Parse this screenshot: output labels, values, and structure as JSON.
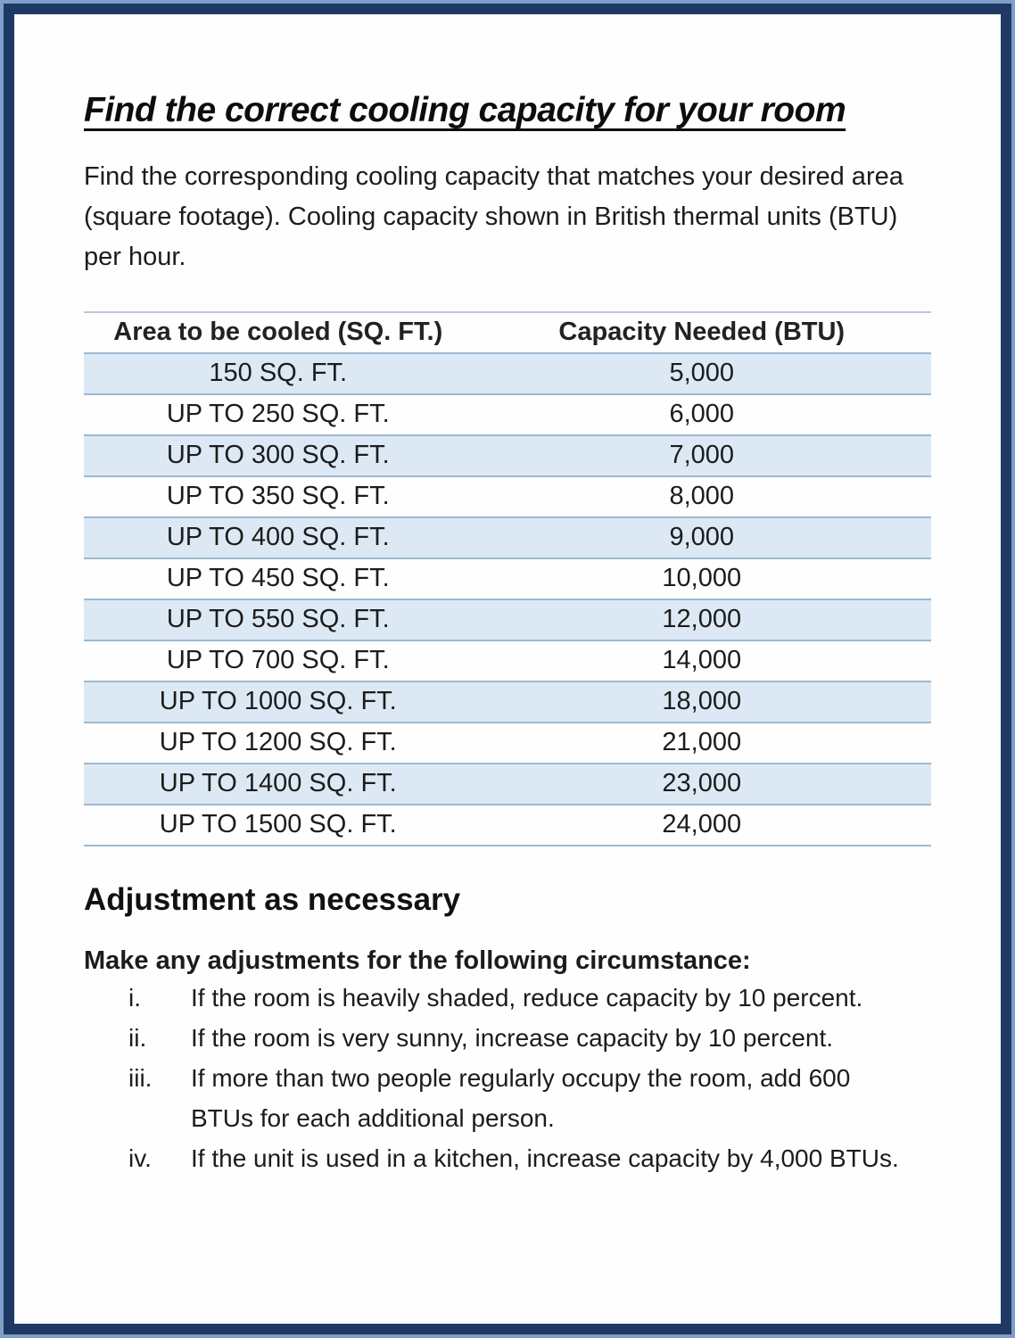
{
  "title": "Find the correct cooling capacity for your room",
  "intro": "Find the corresponding cooling capacity that matches your desired area (square footage). Cooling capacity shown in British thermal units (BTU) per hour.",
  "table": {
    "headers": [
      "Area to be cooled (SQ. FT.)",
      "Capacity Needed (BTU)"
    ],
    "rows": [
      [
        "150 SQ. FT.",
        "5,000"
      ],
      [
        "UP TO 250 SQ. FT.",
        "6,000"
      ],
      [
        "UP TO 300 SQ. FT.",
        "7,000"
      ],
      [
        "UP TO 350 SQ. FT.",
        "8,000"
      ],
      [
        "UP TO 400 SQ. FT.",
        "9,000"
      ],
      [
        "UP TO 450 SQ. FT.",
        "10,000"
      ],
      [
        "UP TO 550 SQ. FT.",
        "12,000"
      ],
      [
        "UP TO 700 SQ. FT.",
        "14,000"
      ],
      [
        "UP TO 1000 SQ. FT.",
        "18,000"
      ],
      [
        "UP TO 1200 SQ. FT.",
        "21,000"
      ],
      [
        "UP TO 1400 SQ. FT.",
        "23,000"
      ],
      [
        "UP TO 1500 SQ. FT.",
        "24,000"
      ]
    ]
  },
  "adjustments": {
    "heading": "Adjustment as necessary",
    "lead": "Make any adjustments for the following circumstance:",
    "items": [
      {
        "marker": "i.",
        "text": "If the room is heavily shaded, reduce capacity by 10 percent."
      },
      {
        "marker": "ii.",
        "text": "If the room is very sunny, increase capacity by 10 percent."
      },
      {
        "marker": "iii.",
        "text": "If more than two people regularly occupy the room, add 600 BTUs for each additional person."
      },
      {
        "marker": "iv.",
        "text": "If the unit is used in a kitchen, increase capacity by 4,000 BTUs."
      }
    ]
  },
  "colors": {
    "border_navy": "#1f3864",
    "border_light": "#7f9fc9",
    "row_shade": "#dce9f5",
    "row_line": "#9cb9d3",
    "text": "#1c1c1c"
  }
}
